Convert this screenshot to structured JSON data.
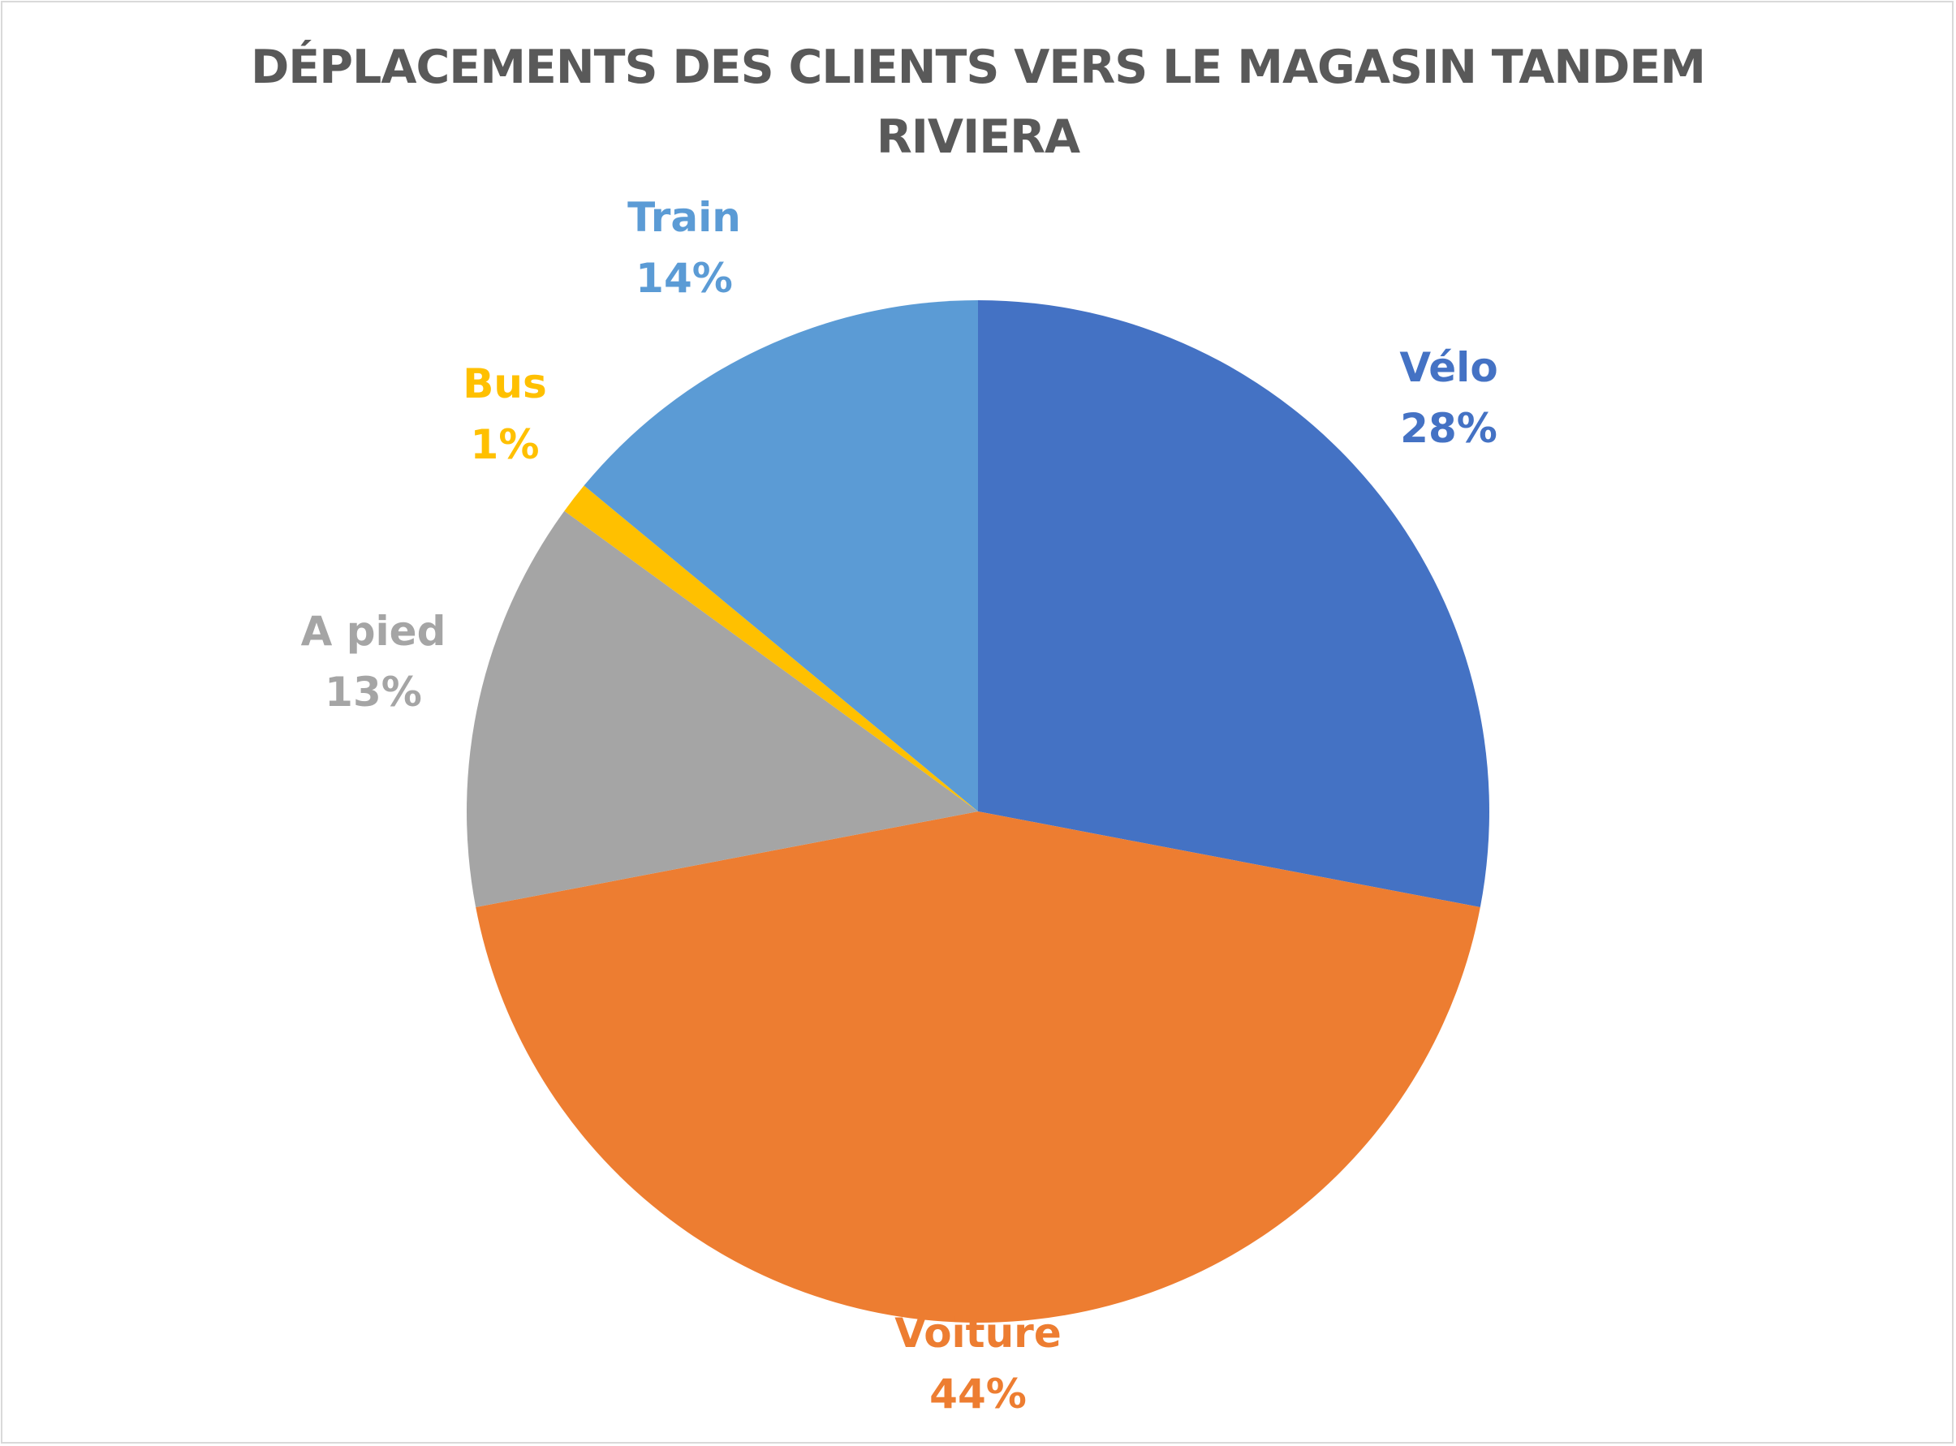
{
  "chart_data": {
    "type": "pie",
    "title": "DÉPLACEMENTS DES CLIENTS VERS LE MAGASIN TANDEM RIVIERA",
    "slices": [
      {
        "name": "Vélo",
        "value": 28,
        "label": "28%",
        "color": "#4472C4"
      },
      {
        "name": "Voiture",
        "value": 44,
        "label": "44%",
        "color": "#ED7D31"
      },
      {
        "name": "A pied",
        "value": 13,
        "label": "13%",
        "color": "#A5A5A5"
      },
      {
        "name": "Bus",
        "value": 1,
        "label": "1%",
        "color": "#FFC000"
      },
      {
        "name": "Train",
        "value": 14,
        "label": "14%",
        "color": "#5B9BD5"
      }
    ],
    "start_angle": "12 o'clock",
    "direction": "clockwise",
    "legend": "none",
    "data_labels": "outside-end"
  }
}
